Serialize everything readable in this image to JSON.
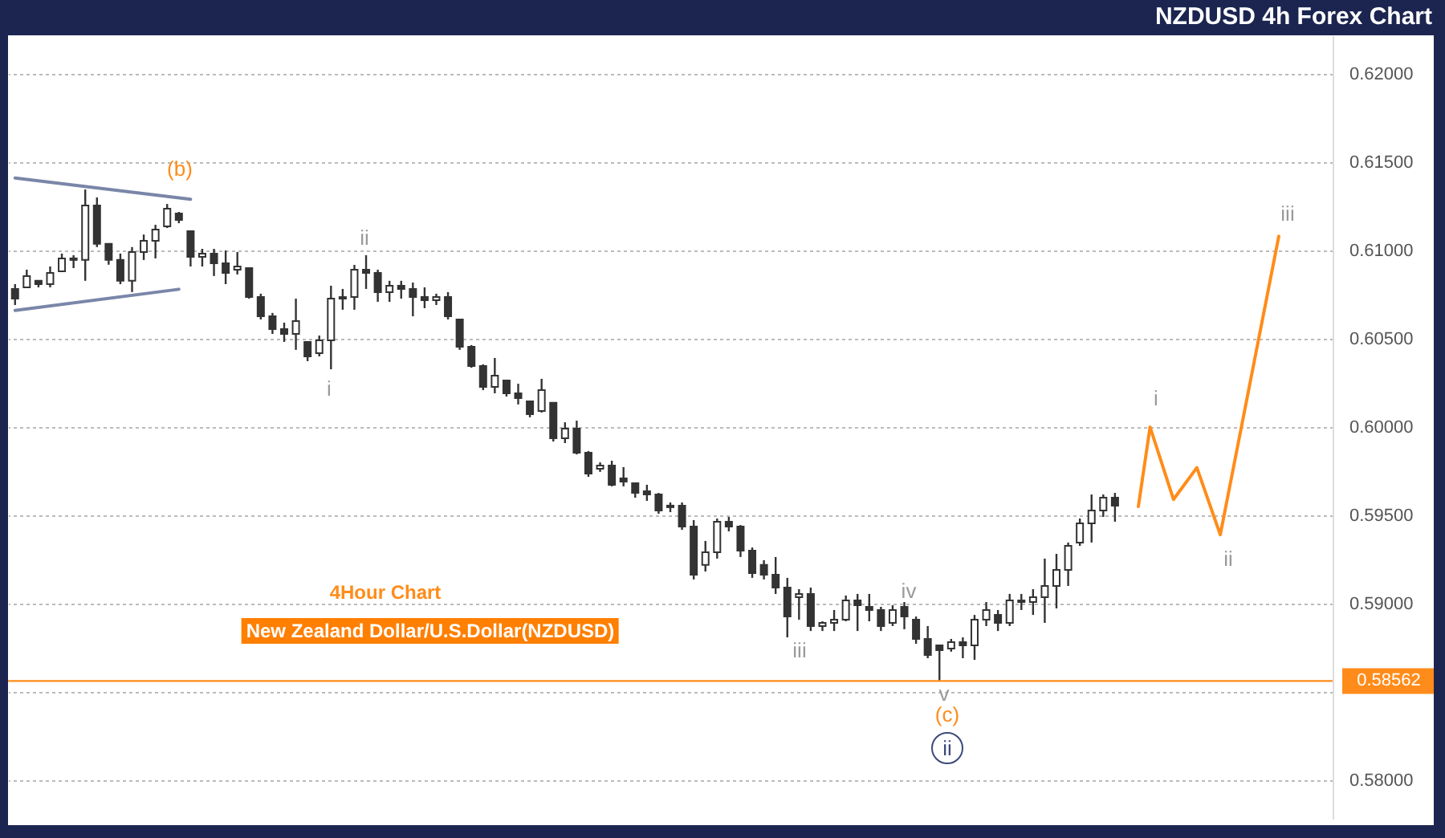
{
  "chart_data": {
    "type": "candlestick",
    "title": "NZDUSD 4h Forex Chart",
    "categories": [
      null,
      null,
      null,
      null,
      null,
      null,
      null,
      null,
      null,
      null,
      null,
      null,
      null,
      null,
      null,
      null,
      null,
      null,
      null,
      null,
      null,
      null,
      null,
      null,
      null,
      null,
      null,
      null,
      null,
      null,
      null,
      null,
      null,
      null,
      null,
      null,
      null,
      null,
      null,
      null,
      null,
      null,
      null,
      null,
      null,
      null,
      null,
      null,
      null,
      null,
      null,
      null,
      null,
      null,
      null,
      null,
      null,
      null,
      null,
      null,
      null,
      null,
      null,
      null,
      null,
      null,
      null,
      null,
      null,
      null,
      null,
      null,
      null,
      null,
      null,
      null,
      null,
      null,
      null,
      null,
      null,
      null,
      null,
      null,
      null,
      null,
      null,
      null,
      null,
      null,
      null,
      null,
      null,
      null,
      null,
      null,
      null,
      null,
      null,
      null,
      null,
      null,
      null,
      null,
      null,
      null,
      null,
      null,
      null,
      null,
      null,
      null,
      null
    ],
    "ohlc": [
      [
        0.60782,
        0.60809,
        0.60691,
        0.60727
      ],
      [
        0.60791,
        0.60891,
        0.60791,
        0.60855
      ],
      [
        0.60828,
        0.60828,
        0.60791,
        0.60809
      ],
      [
        0.60809,
        0.60909,
        0.60791,
        0.60873
      ],
      [
        0.60882,
        0.60982,
        0.60882,
        0.60955
      ],
      [
        0.60955,
        0.60973,
        0.609,
        0.60946
      ],
      [
        0.60946,
        0.61345,
        0.60828,
        0.61254
      ],
      [
        0.61254,
        0.613,
        0.61019,
        0.61037
      ],
      [
        0.61037,
        0.61037,
        0.60919,
        0.60946
      ],
      [
        0.60946,
        0.60982,
        0.60809,
        0.60828
      ],
      [
        0.60828,
        0.61019,
        0.60764,
        0.60991
      ],
      [
        0.60991,
        0.6109,
        0.60946,
        0.61055
      ],
      [
        0.61055,
        0.61145,
        0.60955,
        0.61118
      ],
      [
        0.61136,
        0.61263,
        0.61127,
        0.61236
      ],
      [
        0.61209,
        0.61218,
        0.61154,
        0.61173
      ],
      [
        0.61109,
        0.61109,
        0.60909,
        0.60964
      ],
      [
        0.60964,
        0.61009,
        0.60909,
        0.60982
      ],
      [
        0.60982,
        0.61009,
        0.60855,
        0.60927
      ],
      [
        0.60927,
        0.61,
        0.60809,
        0.60873
      ],
      [
        0.60891,
        0.60991,
        0.60864,
        0.60909
      ],
      [
        0.609,
        0.609,
        0.60727,
        0.60736
      ],
      [
        0.60736,
        0.60755,
        0.60609,
        0.60627
      ],
      [
        0.60627,
        0.60646,
        0.60527,
        0.60555
      ],
      [
        0.60555,
        0.60591,
        0.60482,
        0.60527
      ],
      [
        0.60527,
        0.60727,
        0.60437,
        0.606
      ],
      [
        0.60482,
        0.60482,
        0.60373,
        0.604
      ],
      [
        0.60418,
        0.60518,
        0.604,
        0.60491
      ],
      [
        0.60491,
        0.608,
        0.60327,
        0.60727
      ],
      [
        0.60727,
        0.60782,
        0.60664,
        0.60736
      ],
      [
        0.60736,
        0.60918,
        0.60664,
        0.60891
      ],
      [
        0.60891,
        0.60973,
        0.60782,
        0.60873
      ],
      [
        0.60873,
        0.60891,
        0.60709,
        0.60764
      ],
      [
        0.60764,
        0.60828,
        0.60709,
        0.608
      ],
      [
        0.608,
        0.60828,
        0.60727,
        0.60782
      ],
      [
        0.60782,
        0.60818,
        0.60627,
        0.60736
      ],
      [
        0.60736,
        0.60791,
        0.60673,
        0.60718
      ],
      [
        0.60718,
        0.60755,
        0.60691,
        0.60736
      ],
      [
        0.60736,
        0.60764,
        0.60609,
        0.60627
      ],
      [
        0.60609,
        0.60609,
        0.60437,
        0.60455
      ],
      [
        0.60455,
        0.60464,
        0.60336,
        0.60345
      ],
      [
        0.60345,
        0.60355,
        0.60209,
        0.60227
      ],
      [
        0.60227,
        0.60391,
        0.60191,
        0.60291
      ],
      [
        0.60264,
        0.60264,
        0.60173,
        0.60191
      ],
      [
        0.60191,
        0.60245,
        0.60128,
        0.60164
      ],
      [
        0.60146,
        0.60146,
        0.60055,
        0.60073
      ],
      [
        0.60091,
        0.60273,
        0.60082,
        0.60209
      ],
      [
        0.60137,
        0.60137,
        0.59918,
        0.59936
      ],
      [
        0.59936,
        0.60027,
        0.59909,
        0.59991
      ],
      [
        0.59991,
        0.60036,
        0.59845,
        0.59855
      ],
      [
        0.59855,
        0.59864,
        0.59718,
        0.59736
      ],
      [
        0.59764,
        0.598,
        0.59746,
        0.59782
      ],
      [
        0.59782,
        0.59809,
        0.59664,
        0.59673
      ],
      [
        0.59709,
        0.59773,
        0.59664,
        0.59691
      ],
      [
        0.59682,
        0.59682,
        0.596,
        0.59627
      ],
      [
        0.59636,
        0.59673,
        0.59582,
        0.59618
      ],
      [
        0.59618,
        0.59627,
        0.59509,
        0.59527
      ],
      [
        0.59546,
        0.59573,
        0.59518,
        0.59555
      ],
      [
        0.59555,
        0.59573,
        0.59418,
        0.59436
      ],
      [
        0.59436,
        0.59473,
        0.59137,
        0.59164
      ],
      [
        0.59219,
        0.59355,
        0.59182,
        0.59291
      ],
      [
        0.59291,
        0.59482,
        0.59255,
        0.59464
      ],
      [
        0.59464,
        0.59491,
        0.59409,
        0.59436
      ],
      [
        0.59436,
        0.59445,
        0.59264,
        0.593
      ],
      [
        0.593,
        0.59318,
        0.59146,
        0.59173
      ],
      [
        0.59219,
        0.59246,
        0.59137,
        0.59164
      ],
      [
        0.59164,
        0.59264,
        0.59055,
        0.59091
      ],
      [
        0.59091,
        0.59146,
        0.58809,
        0.58927
      ],
      [
        0.59037,
        0.59082,
        0.58909,
        0.59055
      ],
      [
        0.59055,
        0.59091,
        0.58845,
        0.58873
      ],
      [
        0.58873,
        0.589,
        0.58845,
        0.58891
      ],
      [
        0.58891,
        0.58964,
        0.58845,
        0.58909
      ],
      [
        0.58909,
        0.59046,
        0.589,
        0.59018
      ],
      [
        0.59018,
        0.59055,
        0.58845,
        0.58991
      ],
      [
        0.58982,
        0.59055,
        0.589,
        0.58964
      ],
      [
        0.58964,
        0.58982,
        0.58845,
        0.58873
      ],
      [
        0.58891,
        0.58991,
        0.58873,
        0.58964
      ],
      [
        0.58982,
        0.59009,
        0.58855,
        0.58927
      ],
      [
        0.58909,
        0.58927,
        0.58773,
        0.588
      ],
      [
        0.588,
        0.58873,
        0.58691,
        0.58709
      ],
      [
        0.58764,
        0.58764,
        0.58562,
        0.58737
      ],
      [
        0.58746,
        0.588,
        0.58728,
        0.58782
      ],
      [
        0.58782,
        0.58809,
        0.58691,
        0.58764
      ],
      [
        0.58764,
        0.58936,
        0.58682,
        0.58909
      ],
      [
        0.58909,
        0.59009,
        0.58873,
        0.58964
      ],
      [
        0.58936,
        0.58964,
        0.58845,
        0.58891
      ],
      [
        0.58891,
        0.59055,
        0.58873,
        0.59018
      ],
      [
        0.59018,
        0.59055,
        0.58964,
        0.59009
      ],
      [
        0.59009,
        0.59082,
        0.58936,
        0.59037
      ],
      [
        0.59037,
        0.59255,
        0.58891,
        0.591
      ],
      [
        0.591,
        0.59282,
        0.58973,
        0.59191
      ],
      [
        0.59191,
        0.59346,
        0.591,
        0.59327
      ],
      [
        0.59346,
        0.59482,
        0.59327,
        0.59455
      ],
      [
        0.59455,
        0.59618,
        0.59346,
        0.59527
      ],
      [
        0.59527,
        0.59618,
        0.59491,
        0.596
      ],
      [
        0.596,
        0.59627,
        0.59464,
        0.59555
      ],
      null,
      null,
      null,
      null,
      null,
      null,
      null,
      null,
      null,
      null,
      null,
      null,
      null,
      null,
      null,
      null,
      null,
      null
    ],
    "color": "#333333",
    "series": [
      {
        "type": "line",
        "color": "#7a86a8",
        "values": [
          0.6141,
          null,
          null,
          null,
          null,
          null,
          null,
          null,
          null,
          null,
          null,
          null,
          null,
          null,
          null,
          0.6129,
          null,
          null,
          null,
          null,
          null,
          null,
          null,
          null,
          null,
          null,
          null,
          null,
          null,
          null,
          null,
          null,
          null,
          null,
          null,
          null,
          null,
          null,
          null,
          null,
          null,
          null,
          null,
          null,
          null,
          null,
          null,
          null,
          null,
          null,
          null,
          null,
          null,
          null,
          null,
          null,
          null,
          null,
          null,
          null,
          null,
          null,
          null,
          null,
          null,
          null,
          null,
          null,
          null,
          null,
          null,
          null,
          null,
          null,
          null,
          null,
          null,
          null,
          null,
          null,
          null,
          null,
          null,
          null,
          null,
          null,
          null,
          null,
          null,
          null,
          null,
          null,
          null,
          null,
          null,
          null,
          null,
          null,
          null,
          null,
          null,
          null,
          null,
          null,
          null,
          null,
          null,
          null,
          null,
          null,
          null,
          null,
          null
        ]
      },
      {
        "type": "line",
        "color": "#7a86a8",
        "values": [
          0.6066,
          null,
          null,
          null,
          null,
          null,
          null,
          null,
          null,
          null,
          null,
          null,
          null,
          null,
          0.6078,
          null,
          null,
          null,
          null,
          null,
          null,
          null,
          null,
          null,
          null,
          null,
          null,
          null,
          null,
          null,
          null,
          null,
          null,
          null,
          null,
          null,
          null,
          null,
          null,
          null,
          null,
          null,
          null,
          null,
          null,
          null,
          null,
          null,
          null,
          null,
          null,
          null,
          null,
          null,
          null,
          null,
          null,
          null,
          null,
          null,
          null,
          null,
          null,
          null,
          null,
          null,
          null,
          null,
          null,
          null,
          null,
          null,
          null,
          null,
          null,
          null,
          null,
          null,
          null,
          null,
          null,
          null,
          null,
          null,
          null,
          null,
          null,
          null,
          null,
          null,
          null,
          null,
          null,
          null,
          null,
          null,
          null,
          null,
          null,
          null,
          null,
          null,
          null,
          null,
          null,
          null,
          null,
          null,
          null,
          null,
          null,
          null,
          null
        ]
      },
      {
        "type": "line",
        "color": "#ff8c1a",
        "values": [
          null,
          null,
          null,
          null,
          null,
          null,
          null,
          null,
          null,
          null,
          null,
          null,
          null,
          null,
          null,
          null,
          null,
          null,
          null,
          null,
          null,
          null,
          null,
          null,
          null,
          null,
          null,
          null,
          null,
          null,
          null,
          null,
          null,
          null,
          null,
          null,
          null,
          null,
          null,
          null,
          null,
          null,
          null,
          null,
          null,
          null,
          null,
          null,
          null,
          null,
          null,
          null,
          null,
          null,
          null,
          null,
          null,
          null,
          null,
          null,
          null,
          null,
          null,
          null,
          null,
          null,
          null,
          null,
          null,
          null,
          null,
          null,
          null,
          null,
          null,
          null,
          null,
          null,
          null,
          null,
          null,
          null,
          null,
          null,
          null,
          null,
          null,
          null,
          null,
          null,
          null,
          null,
          null,
          null,
          null,
          null,
          0.5955,
          0.6,
          null,
          0.5959,
          null,
          0.5977,
          null,
          0.5939,
          null,
          null,
          null,
          null,
          0.6108,
          null,
          null,
          null,
          null
        ]
      }
    ],
    "ylim": [
      0.57782,
      0.62218
    ],
    "yticks": [
      {
        "value": 0.58,
        "label": "0.58000"
      },
      {
        "value": 0.585,
        "label": null
      },
      {
        "value": 0.59,
        "label": "0.59000"
      },
      {
        "value": 0.595,
        "label": "0.59500"
      },
      {
        "value": 0.6,
        "label": "0.60000"
      },
      {
        "value": 0.605,
        "label": "0.60500"
      },
      {
        "value": 0.61,
        "label": "0.61000"
      },
      {
        "value": 0.615,
        "label": "0.61500"
      },
      {
        "value": 0.62,
        "label": "0.62000"
      }
    ],
    "tick_labels": "y",
    "grid": "y",
    "ref_lines": [
      {
        "axis": "y",
        "value": 0.58562,
        "label": "0.58562",
        "color": "#ff8c1a"
      }
    ],
    "annotations": [
      "(b)",
      "ii",
      "i",
      "iii",
      "iv",
      "v",
      "(c)",
      "ii",
      "i",
      "ii",
      "iii",
      "4Hour Chart",
      "New Zealand Dollar/U.S.Dollar(NZDUSD)"
    ]
  }
}
